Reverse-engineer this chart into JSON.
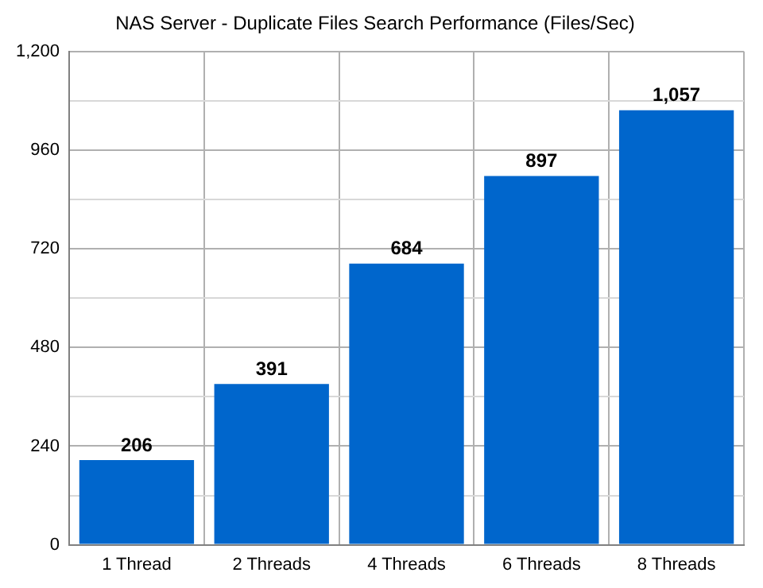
{
  "chart_data": {
    "type": "bar",
    "title": "NAS Server - Duplicate Files Search Performance (Files/Sec)",
    "categories": [
      "1 Thread",
      "2 Threads",
      "4 Threads",
      "6 Threads",
      "8 Threads"
    ],
    "values": [
      206,
      391,
      684,
      897,
      1057
    ],
    "color": "#0066cc",
    "ylim": [
      0,
      1200
    ],
    "yticks": [
      0,
      {
        "value": 120,
        "label": null
      },
      {
        "value": 240,
        "label": "240"
      },
      {
        "value": 360,
        "label": null
      },
      {
        "value": 480,
        "label": "480"
      },
      {
        "value": 600,
        "label": null
      },
      {
        "value": 720,
        "label": "720"
      },
      {
        "value": 840,
        "label": null
      },
      {
        "value": 960,
        "label": "960"
      },
      {
        "value": 1080,
        "label": null
      },
      {
        "value": 1200,
        "label": "1,200"
      }
    ],
    "value_labels": [
      "206",
      "391",
      "684",
      "897",
      "1,057"
    ],
    "grid": true,
    "legend": false
  }
}
